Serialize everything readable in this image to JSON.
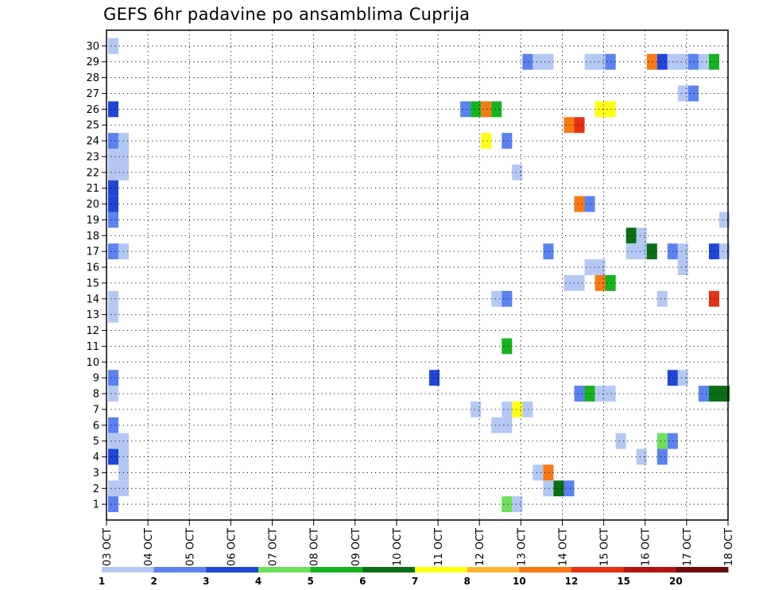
{
  "chart_data": {
    "type": "heatmap",
    "title": "GEFS 6hr padavine po ansamblima Cuprija",
    "xlabel": "",
    "ylabel": "",
    "x_tick_labels": [
      "03 OCT",
      "04 OCT",
      "05 OCT",
      "06 OCT",
      "07 OCT",
      "08 OCT",
      "09 OCT",
      "10 OCT",
      "11 OCT",
      "12 OCT",
      "13 OCT",
      "14 OCT",
      "15 OCT",
      "16 OCT",
      "17 OCT",
      "18 OCT"
    ],
    "y_tick_labels": [
      "1",
      "2",
      "3",
      "4",
      "5",
      "6",
      "7",
      "8",
      "9",
      "10",
      "11",
      "12",
      "13",
      "14",
      "15",
      "16",
      "17",
      "18",
      "19",
      "20",
      "21",
      "22",
      "23",
      "24",
      "25",
      "26",
      "27",
      "28",
      "29",
      "30"
    ],
    "x_range_days": [
      0,
      15
    ],
    "time_step_hours": 6,
    "members": [
      1,
      30
    ],
    "grid": "dotted",
    "legend": {
      "position": "bottom",
      "tick_labels": [
        "1",
        "2",
        "3",
        "4",
        "5",
        "6",
        "7",
        "8",
        "10",
        "12",
        "15",
        "20"
      ],
      "colors": [
        "#b4c8f5",
        "#5a82f0",
        "#1e46d7",
        "#6ee15a",
        "#14b41e",
        "#0a6e14",
        "#ffff14",
        "#ffb432",
        "#fa7814",
        "#e63214",
        "#b4140f",
        "#6e0a0a"
      ]
    },
    "cells": [
      {
        "member": 30,
        "step": 1,
        "level": 1
      },
      {
        "member": 29,
        "step": 41,
        "level": 2
      },
      {
        "member": 29,
        "step": 42,
        "level": 1
      },
      {
        "member": 29,
        "step": 43,
        "level": 1
      },
      {
        "member": 29,
        "step": 47,
        "level": 1
      },
      {
        "member": 29,
        "step": 48,
        "level": 1
      },
      {
        "member": 29,
        "step": 49,
        "level": 2
      },
      {
        "member": 29,
        "step": 53,
        "level": 9
      },
      {
        "member": 29,
        "step": 54,
        "level": 3
      },
      {
        "member": 29,
        "step": 55,
        "level": 1
      },
      {
        "member": 29,
        "step": 56,
        "level": 1
      },
      {
        "member": 29,
        "step": 57,
        "level": 2
      },
      {
        "member": 29,
        "step": 58,
        "level": 1
      },
      {
        "member": 29,
        "step": 59,
        "level": 5
      },
      {
        "member": 27,
        "step": 56,
        "level": 1
      },
      {
        "member": 27,
        "step": 57,
        "level": 2
      },
      {
        "member": 26,
        "step": 1,
        "level": 3
      },
      {
        "member": 26,
        "step": 35,
        "level": 2
      },
      {
        "member": 26,
        "step": 36,
        "level": 5
      },
      {
        "member": 26,
        "step": 37,
        "level": 9
      },
      {
        "member": 26,
        "step": 38,
        "level": 5
      },
      {
        "member": 26,
        "step": 48,
        "level": 7
      },
      {
        "member": 26,
        "step": 49,
        "level": 7
      },
      {
        "member": 25,
        "step": 45,
        "level": 9
      },
      {
        "member": 25,
        "step": 46,
        "level": 10
      },
      {
        "member": 24,
        "step": 1,
        "level": 2
      },
      {
        "member": 24,
        "step": 2,
        "level": 1
      },
      {
        "member": 24,
        "step": 37,
        "level": 7
      },
      {
        "member": 24,
        "step": 39,
        "level": 2
      },
      {
        "member": 23,
        "step": 1,
        "level": 1
      },
      {
        "member": 23,
        "step": 2,
        "level": 1
      },
      {
        "member": 22,
        "step": 1,
        "level": 1
      },
      {
        "member": 22,
        "step": 2,
        "level": 1
      },
      {
        "member": 22,
        "step": 40,
        "level": 1
      },
      {
        "member": 21,
        "step": 1,
        "level": 3
      },
      {
        "member": 20,
        "step": 1,
        "level": 3
      },
      {
        "member": 20,
        "step": 46,
        "level": 9
      },
      {
        "member": 20,
        "step": 47,
        "level": 2
      },
      {
        "member": 19,
        "step": 1,
        "level": 2
      },
      {
        "member": 19,
        "step": 60,
        "level": 1
      },
      {
        "member": 18,
        "step": 51,
        "level": 6
      },
      {
        "member": 18,
        "step": 52,
        "level": 1
      },
      {
        "member": 17,
        "step": 1,
        "level": 2
      },
      {
        "member": 17,
        "step": 2,
        "level": 1
      },
      {
        "member": 17,
        "step": 43,
        "level": 2
      },
      {
        "member": 17,
        "step": 51,
        "level": 1
      },
      {
        "member": 17,
        "step": 52,
        "level": 1
      },
      {
        "member": 17,
        "step": 53,
        "level": 6
      },
      {
        "member": 17,
        "step": 55,
        "level": 2
      },
      {
        "member": 17,
        "step": 56,
        "level": 1
      },
      {
        "member": 17,
        "step": 59,
        "level": 3
      },
      {
        "member": 17,
        "step": 60,
        "level": 1
      },
      {
        "member": 16,
        "step": 47,
        "level": 1
      },
      {
        "member": 16,
        "step": 48,
        "level": 1
      },
      {
        "member": 16,
        "step": 56,
        "level": 1
      },
      {
        "member": 15,
        "step": 45,
        "level": 1
      },
      {
        "member": 15,
        "step": 46,
        "level": 1
      },
      {
        "member": 15,
        "step": 48,
        "level": 9
      },
      {
        "member": 15,
        "step": 49,
        "level": 5
      },
      {
        "member": 14,
        "step": 1,
        "level": 1
      },
      {
        "member": 14,
        "step": 38,
        "level": 1
      },
      {
        "member": 14,
        "step": 39,
        "level": 2
      },
      {
        "member": 14,
        "step": 54,
        "level": 1
      },
      {
        "member": 14,
        "step": 59,
        "level": 10
      },
      {
        "member": 13,
        "step": 1,
        "level": 1
      },
      {
        "member": 11,
        "step": 39,
        "level": 5
      },
      {
        "member": 9,
        "step": 1,
        "level": 2
      },
      {
        "member": 9,
        "step": 32,
        "level": 3
      },
      {
        "member": 9,
        "step": 55,
        "level": 3
      },
      {
        "member": 9,
        "step": 56,
        "level": 1
      },
      {
        "member": 8,
        "step": 1,
        "level": 1
      },
      {
        "member": 8,
        "step": 46,
        "level": 2
      },
      {
        "member": 8,
        "step": 47,
        "level": 5
      },
      {
        "member": 8,
        "step": 48,
        "level": 1
      },
      {
        "member": 8,
        "step": 49,
        "level": 1
      },
      {
        "member": 8,
        "step": 58,
        "level": 2
      },
      {
        "member": 8,
        "step": 59,
        "level": 6
      },
      {
        "member": 8,
        "step": 60,
        "level": 6
      },
      {
        "member": 7,
        "step": 36,
        "level": 1
      },
      {
        "member": 7,
        "step": 39,
        "level": 1
      },
      {
        "member": 7,
        "step": 40,
        "level": 7
      },
      {
        "member": 7,
        "step": 41,
        "level": 1
      },
      {
        "member": 6,
        "step": 1,
        "level": 2
      },
      {
        "member": 6,
        "step": 38,
        "level": 1
      },
      {
        "member": 6,
        "step": 39,
        "level": 1
      },
      {
        "member": 5,
        "step": 1,
        "level": 1
      },
      {
        "member": 5,
        "step": 2,
        "level": 1
      },
      {
        "member": 5,
        "step": 50,
        "level": 1
      },
      {
        "member": 5,
        "step": 54,
        "level": 4
      },
      {
        "member": 5,
        "step": 55,
        "level": 2
      },
      {
        "member": 4,
        "step": 1,
        "level": 3
      },
      {
        "member": 4,
        "step": 2,
        "level": 1
      },
      {
        "member": 4,
        "step": 52,
        "level": 1
      },
      {
        "member": 4,
        "step": 54,
        "level": 2
      },
      {
        "member": 3,
        "step": 2,
        "level": 1
      },
      {
        "member": 3,
        "step": 42,
        "level": 1
      },
      {
        "member": 3,
        "step": 43,
        "level": 9
      },
      {
        "member": 2,
        "step": 1,
        "level": 1
      },
      {
        "member": 2,
        "step": 2,
        "level": 1
      },
      {
        "member": 2,
        "step": 43,
        "level": 1
      },
      {
        "member": 2,
        "step": 44,
        "level": 6
      },
      {
        "member": 2,
        "step": 45,
        "level": 2
      },
      {
        "member": 1,
        "step": 1,
        "level": 2
      },
      {
        "member": 1,
        "step": 39,
        "level": 4
      },
      {
        "member": 1,
        "step": 40,
        "level": 1
      }
    ]
  }
}
